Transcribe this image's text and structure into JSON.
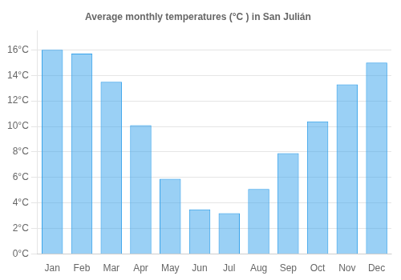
{
  "chart_data": {
    "type": "bar",
    "title": "Average monthly temperatures (°C ) in San Julián",
    "categories": [
      "Jan",
      "Feb",
      "Mar",
      "Apr",
      "May",
      "Jun",
      "Jul",
      "Aug",
      "Sep",
      "Oct",
      "Nov",
      "Dec"
    ],
    "values": [
      16.0,
      15.7,
      13.5,
      10.1,
      5.9,
      3.5,
      3.2,
      5.1,
      7.9,
      10.4,
      13.3,
      15.0
    ],
    "ylim": [
      0,
      17.5
    ],
    "yticks": [
      {
        "value": 0,
        "label": "0°C"
      },
      {
        "value": 2,
        "label": "2°C"
      },
      {
        "value": 4,
        "label": "4°C"
      },
      {
        "value": 6,
        "label": "6°C"
      },
      {
        "value": 8,
        "label": "8°C"
      },
      {
        "value": 10,
        "label": "10°C"
      },
      {
        "value": 12,
        "label": "12°C"
      },
      {
        "value": 14,
        "label": "14°C"
      },
      {
        "value": 16,
        "label": "16°C"
      }
    ],
    "grid": true
  }
}
